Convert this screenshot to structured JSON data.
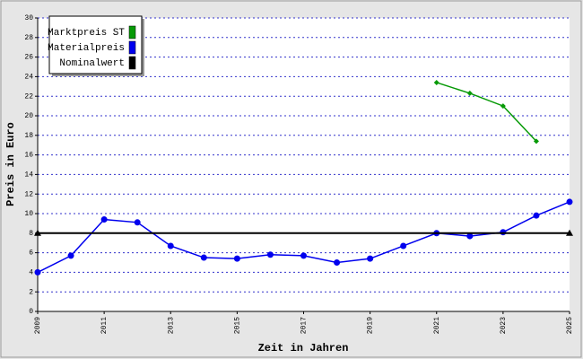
{
  "chart_data": {
    "type": "line",
    "x_label": "Zeit in Jahren",
    "y_label": "Preis in Euro",
    "x": [
      2009,
      2010,
      2011,
      2012,
      2013,
      2014,
      2015,
      2016,
      2017,
      2018,
      2019,
      2020,
      2021,
      2022,
      2023,
      2024,
      2025
    ],
    "xlim": [
      2009,
      2025
    ],
    "xticks": [
      2009,
      2011,
      2013,
      2015,
      2017,
      2019,
      2021,
      2023,
      2025
    ],
    "ylim": [
      0,
      30
    ],
    "yticks": [
      0,
      2,
      4,
      6,
      8,
      10,
      12,
      14,
      16,
      18,
      20,
      22,
      24,
      26,
      28,
      30
    ],
    "grid": true,
    "legend": "upper left",
    "series": [
      {
        "name": "Marktpreis ST",
        "color": "#079a07",
        "values": [
          null,
          null,
          null,
          null,
          null,
          null,
          null,
          null,
          null,
          null,
          null,
          null,
          23.4,
          22.3,
          21.0,
          17.4,
          null
        ]
      },
      {
        "name": "Materialpreis",
        "color": "#0000ee",
        "values": [
          4.0,
          5.7,
          9.4,
          9.1,
          6.7,
          5.5,
          5.4,
          5.8,
          5.7,
          5.0,
          5.4,
          6.7,
          8.0,
          7.7,
          8.1,
          9.8,
          11.2
        ]
      },
      {
        "name": "Nominalwert",
        "color": "#000000",
        "values": [
          8,
          8,
          8,
          8,
          8,
          8,
          8,
          8,
          8,
          8,
          8,
          8,
          8,
          8,
          8,
          8,
          8
        ]
      }
    ]
  }
}
